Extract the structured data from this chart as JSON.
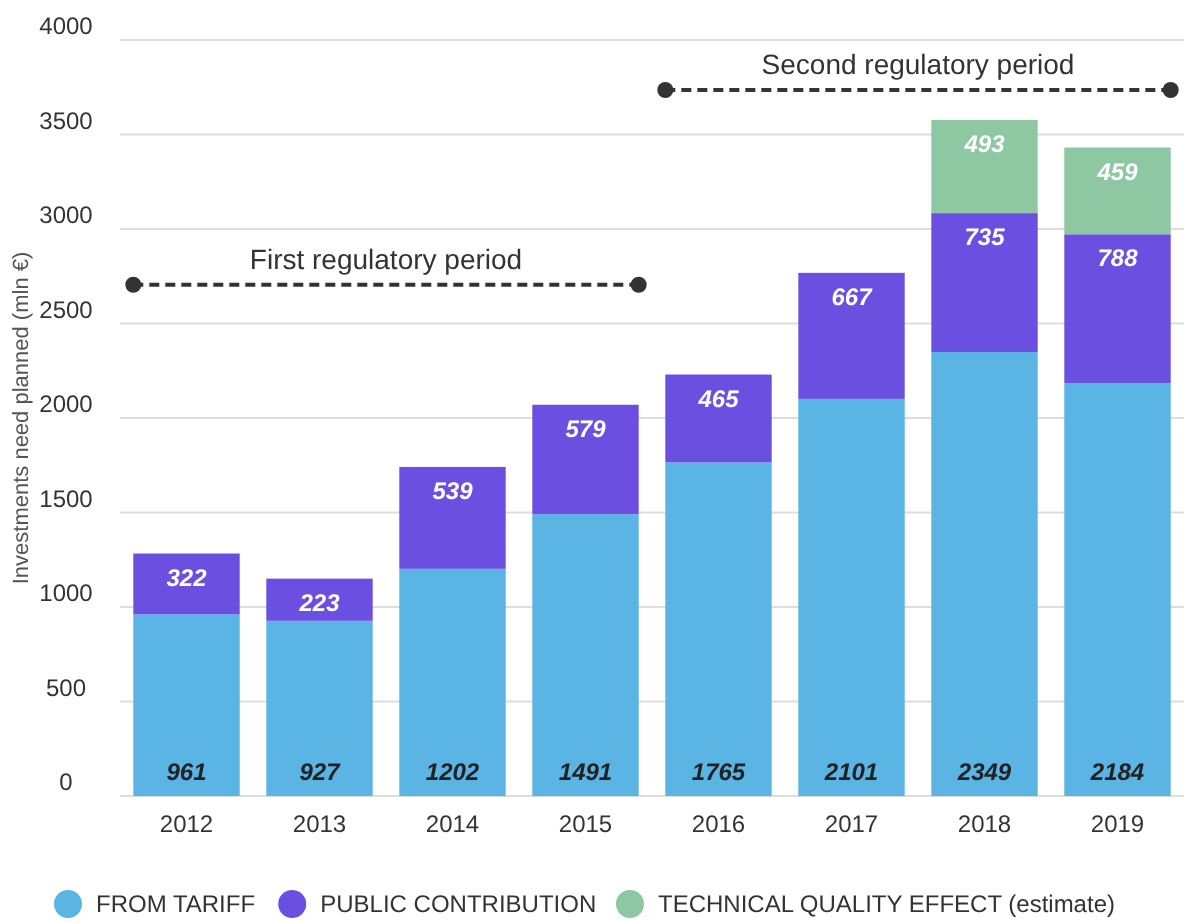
{
  "chart_data": {
    "type": "bar",
    "stacked": true,
    "ylabel": "Investments need planned (mln €)",
    "categories": [
      "2012",
      "2013",
      "2014",
      "2015",
      "2016",
      "2017",
      "2018",
      "2019"
    ],
    "series": [
      {
        "name": "FROM TARIFF",
        "color": "#5ab4e4",
        "values": [
          961,
          927,
          1202,
          1491,
          1765,
          2101,
          2349,
          2184
        ]
      },
      {
        "name": "PUBLIC CONTRIBUTION",
        "color": "#6b4fe0",
        "values": [
          322,
          223,
          539,
          579,
          465,
          667,
          735,
          788
        ]
      },
      {
        "name": "TECHNICAL QUALITY EFFECT (estimate)",
        "color": "#8dc8a2",
        "values": [
          null,
          null,
          null,
          null,
          null,
          null,
          493,
          459
        ]
      }
    ],
    "ylim": [
      0,
      4000
    ],
    "yticks": [
      0,
      500,
      1000,
      1500,
      2000,
      2500,
      3000,
      3500,
      4000
    ],
    "grid": "y",
    "legend": "bottom",
    "data_labels": true,
    "annotations": [
      "First regulatory period",
      "Second regulatory period"
    ]
  }
}
